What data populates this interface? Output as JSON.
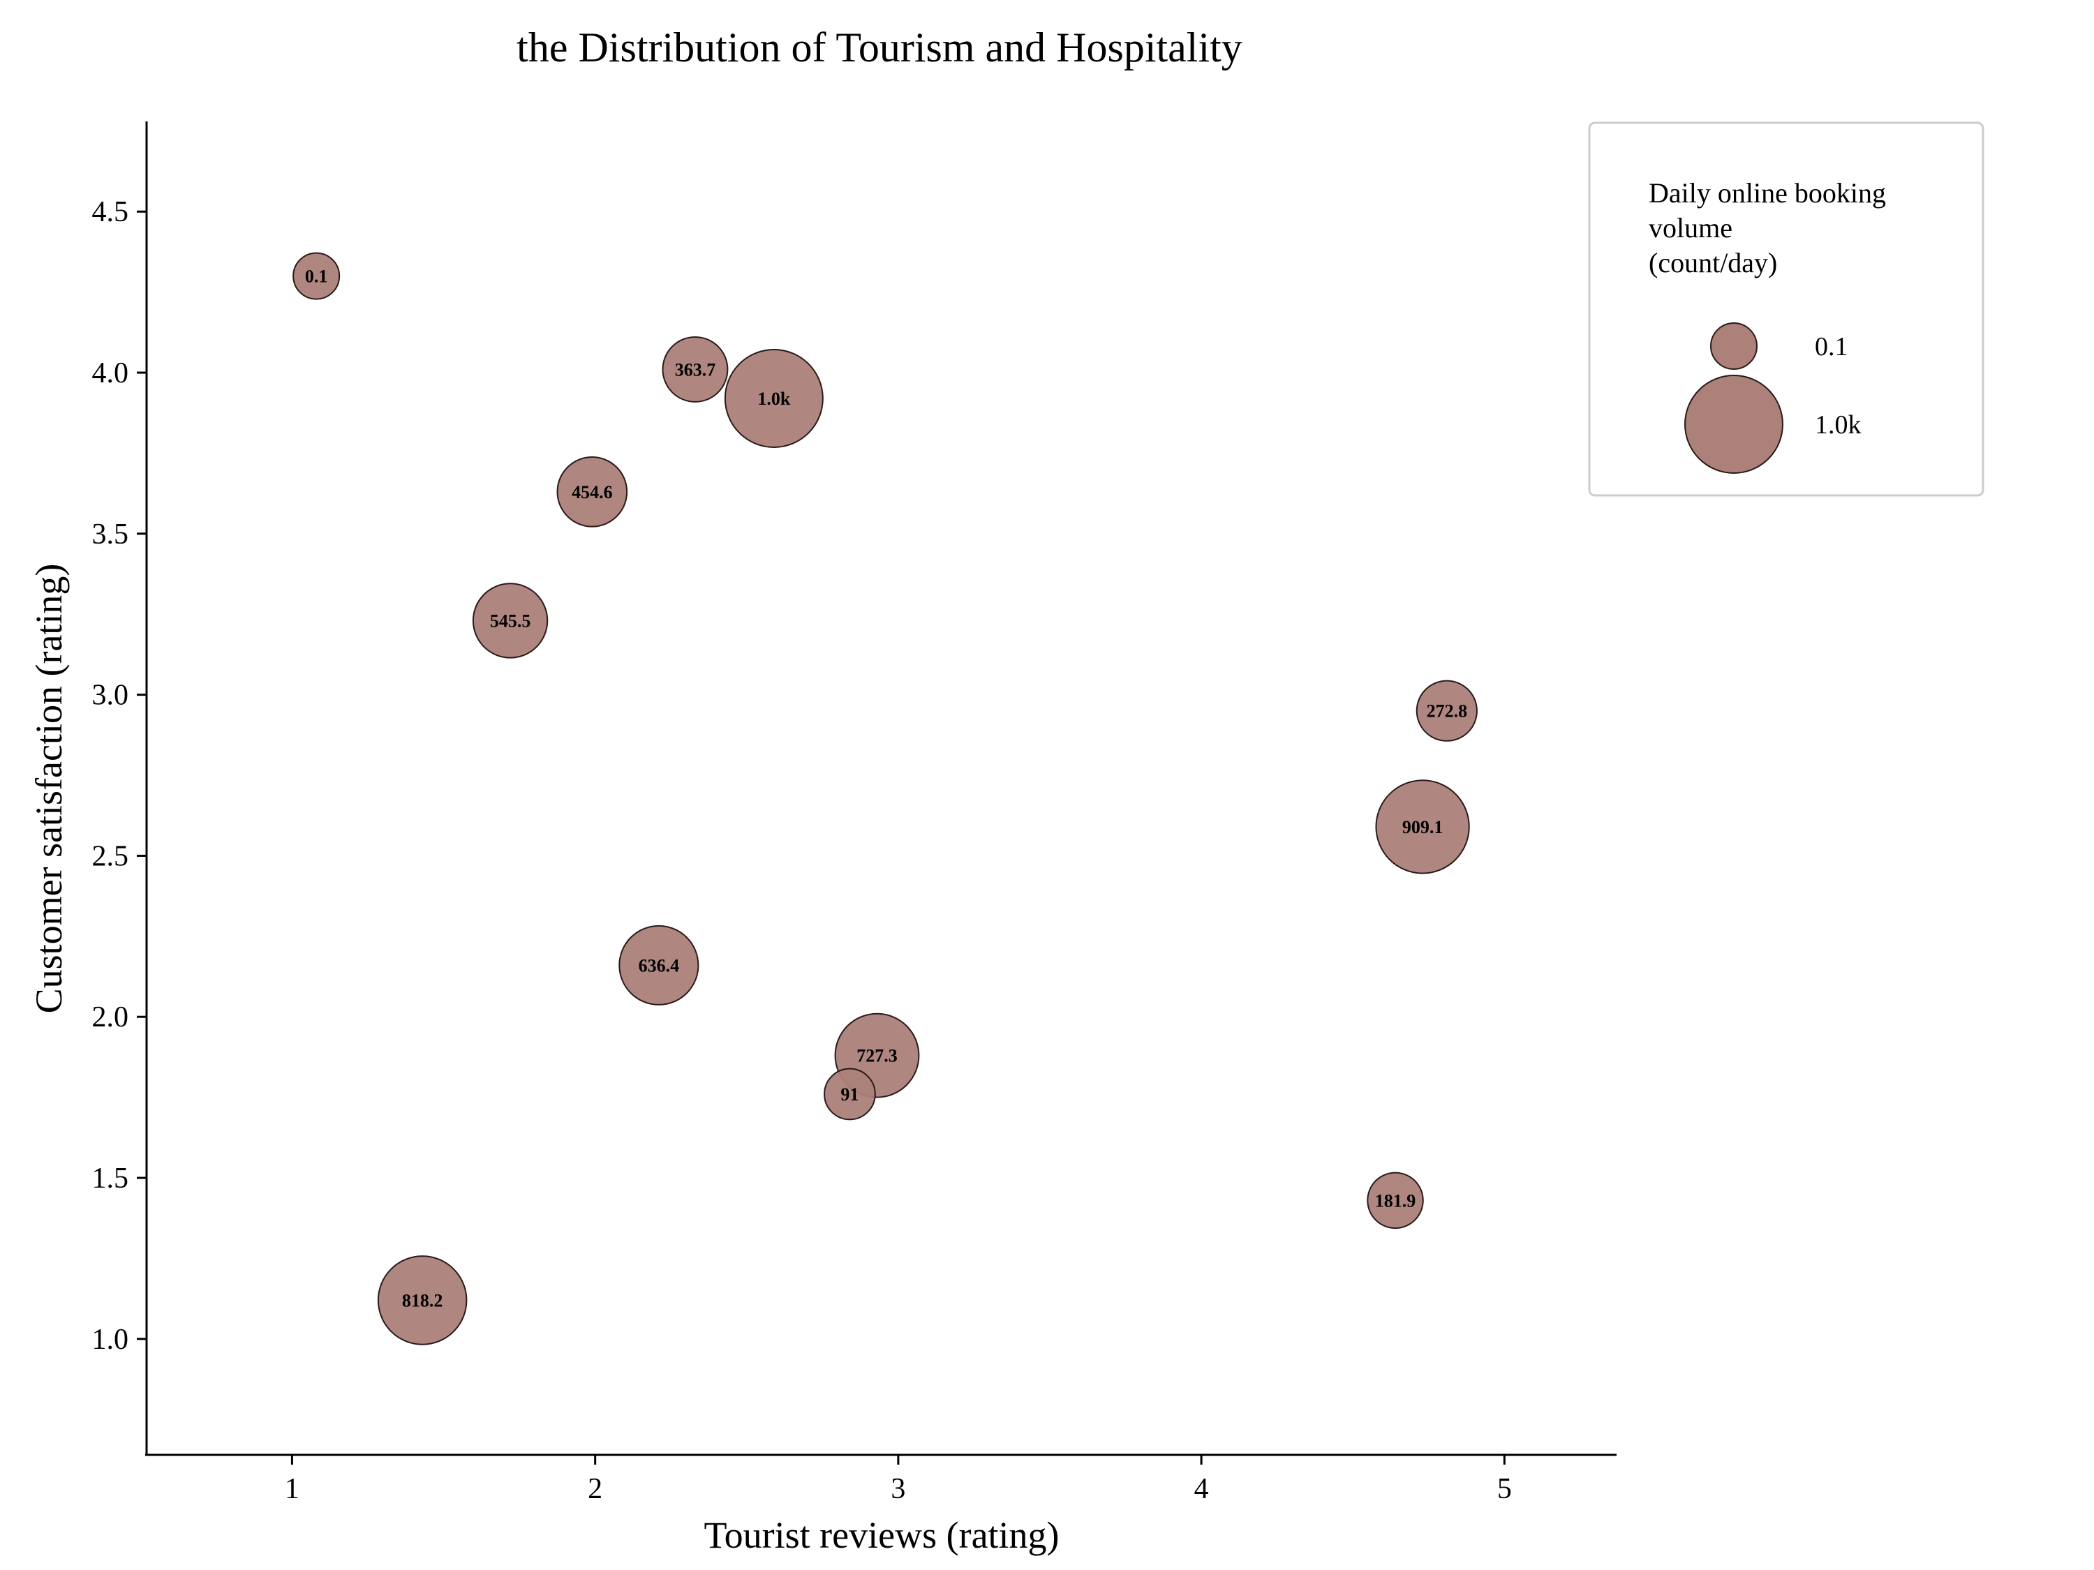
{
  "chart_data": {
    "type": "scatter",
    "title": "the Distribution of Tourism and Hospitality",
    "xlabel": "Tourist reviews (rating)",
    "ylabel": "Customer satisfaction (rating)",
    "xlim": [
      0.52,
      5.37
    ],
    "ylim": [
      0.64,
      4.78
    ],
    "xticks": [
      1,
      2,
      3,
      4,
      5
    ],
    "yticks": [
      1.0,
      1.5,
      2.0,
      2.5,
      3.0,
      3.5,
      4.0,
      4.5
    ],
    "grid": false,
    "legend_placement": "top-right, outside plot area",
    "bubble_color": "#ab8179",
    "size_range": [
      0.1,
      1000
    ],
    "points": [
      {
        "x": 1.08,
        "y": 4.3,
        "size": 0.1,
        "label": "0.1"
      },
      {
        "x": 2.33,
        "y": 4.01,
        "size": 363.7,
        "label": "363.7"
      },
      {
        "x": 2.59,
        "y": 3.92,
        "size": 1000,
        "label": "1.0k"
      },
      {
        "x": 1.99,
        "y": 3.63,
        "size": 454.6,
        "label": "454.6"
      },
      {
        "x": 1.72,
        "y": 3.23,
        "size": 545.5,
        "label": "545.5"
      },
      {
        "x": 4.81,
        "y": 2.95,
        "size": 272.8,
        "label": "272.8"
      },
      {
        "x": 4.73,
        "y": 2.59,
        "size": 909.1,
        "label": "909.1"
      },
      {
        "x": 2.21,
        "y": 2.16,
        "size": 636.4,
        "label": "636.4"
      },
      {
        "x": 2.93,
        "y": 1.88,
        "size": 727.3,
        "label": "727.3"
      },
      {
        "x": 2.84,
        "y": 1.76,
        "size": 91,
        "label": "91"
      },
      {
        "x": 4.64,
        "y": 1.43,
        "size": 181.9,
        "label": "181.9"
      },
      {
        "x": 1.43,
        "y": 1.12,
        "size": 818.2,
        "label": "818.2"
      }
    ],
    "legend": {
      "title": [
        "Daily online booking",
        "volume",
        "(count/day)"
      ],
      "items": [
        {
          "size": 0.1,
          "label": "0.1"
        },
        {
          "size": 1000,
          "label": "1.0k"
        }
      ]
    }
  }
}
